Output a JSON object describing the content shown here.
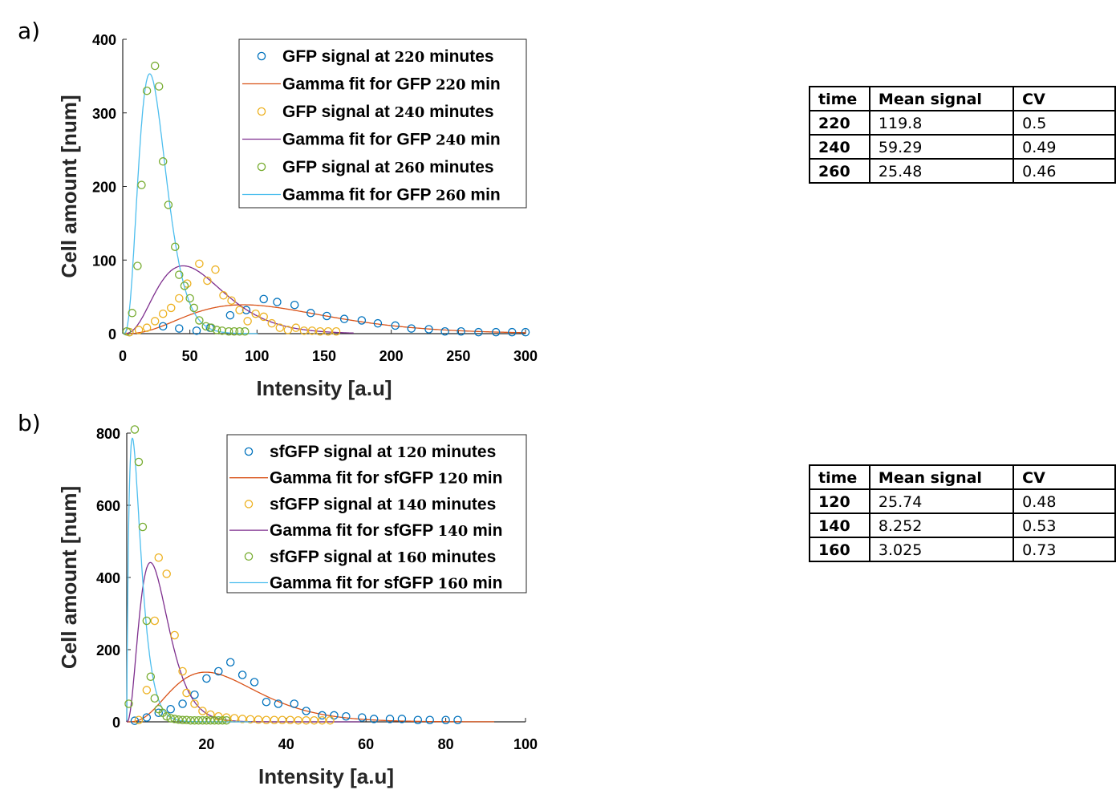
{
  "panels": [
    {
      "label": "a)",
      "chart_data": {
        "type": "scatter",
        "xlabel": "Intensity [a.u]",
        "ylabel": "Cell amount [num]",
        "xlim": [
          0,
          300
        ],
        "ylim": [
          0,
          400
        ],
        "xticks": [
          0,
          50,
          100,
          150,
          200,
          250,
          300
        ],
        "yticks": [
          0,
          100,
          200,
          300,
          400
        ],
        "legend_position": "top-right",
        "series": [
          {
            "name": "GFP signal at 220 minutes",
            "kind": "scatter",
            "color": "#0072BD",
            "x": [
              5,
              30,
              42,
              55,
              65,
              80,
              92,
              105,
              115,
              128,
              140,
              152,
              165,
              178,
              190,
              203,
              215,
              228,
              240,
              252,
              265,
              278,
              290,
              300
            ],
            "y": [
              2,
              10,
              7,
              4,
              8,
              25,
              32,
              47,
              43,
              39,
              28,
              24,
              20,
              18,
              14,
              11,
              7,
              6,
              3,
              3,
              2,
              2,
              2,
              2
            ]
          },
          {
            "name": "Gamma fit for GFP 220 min",
            "kind": "line",
            "color": "#D95319",
            "mean": 119.8,
            "cv": 0.5
          },
          {
            "name": "GFP signal at 240 minutes",
            "kind": "scatter",
            "color": "#EDB120",
            "x": [
              5,
              12,
              18,
              24,
              30,
              36,
              42,
              48,
              57,
              63,
              69,
              75,
              81,
              87,
              93,
              99,
              105,
              111,
              117,
              123,
              129,
              135,
              141,
              147,
              153,
              159
            ],
            "y": [
              2,
              5,
              8,
              17,
              27,
              35,
              48,
              68,
              95,
              72,
              87,
              52,
              45,
              32,
              17,
              27,
              23,
              14,
              8,
              5,
              8,
              4,
              4,
              3,
              3,
              3
            ]
          },
          {
            "name": "Gamma fit for GFP 240 min",
            "kind": "line",
            "color": "#7E2F8E",
            "mean": 59.29,
            "cv": 0.49
          },
          {
            "name": "GFP signal at 260 minutes",
            "kind": "scatter",
            "color": "#77AC30",
            "x": [
              3,
              7,
              11,
              14,
              18,
              24,
              27,
              30,
              34,
              39,
              42,
              46,
              50,
              53,
              57,
              62,
              66,
              70,
              74,
              79,
              83,
              87,
              91
            ],
            "y": [
              3,
              28,
              92,
              202,
              330,
              364,
              336,
              234,
              175,
              118,
              80,
              65,
              48,
              35,
              18,
              10,
              8,
              5,
              4,
              3,
              3,
              3,
              3
            ]
          },
          {
            "name": "Gamma fit for GFP 260 min",
            "kind": "line",
            "color": "#4DBEEE",
            "mean": 25.48,
            "cv": 0.46
          }
        ]
      },
      "table": {
        "headers": [
          "time",
          "Mean signal",
          "CV"
        ],
        "rows": [
          [
            "220",
            "119.8",
            "0.5"
          ],
          [
            "240",
            "59.29",
            "0.49"
          ],
          [
            "260",
            "25.48",
            "0.46"
          ]
        ]
      }
    },
    {
      "label": "b)",
      "chart_data": {
        "type": "scatter",
        "xlabel": "Intensity [a.u]",
        "ylabel": "Cell amount [num]",
        "xlim": [
          0,
          100
        ],
        "ylim": [
          0,
          800
        ],
        "xticks": [
          20,
          40,
          60,
          80,
          100
        ],
        "yticks": [
          0,
          200,
          400,
          600,
          800
        ],
        "legend_position": "top-right",
        "series": [
          {
            "name": "sfGFP signal at 120 minutes",
            "kind": "scatter",
            "color": "#0072BD",
            "x": [
              2,
              5,
              8,
              11,
              14,
              17,
              20,
              23,
              26,
              29,
              32,
              35,
              38,
              42,
              45,
              49,
              52,
              55,
              59,
              62,
              66,
              69,
              73,
              76,
              80,
              83
            ],
            "y": [
              3,
              12,
              25,
              35,
              50,
              75,
              120,
              140,
              165,
              130,
              110,
              55,
              50,
              50,
              30,
              18,
              18,
              15,
              12,
              8,
              8,
              8,
              5,
              5,
              5,
              5
            ]
          },
          {
            "name": "Gamma fit for sfGFP 120 min",
            "kind": "line",
            "color": "#D95319",
            "mean": 25.74,
            "cv": 0.48
          },
          {
            "name": "sfGFP signal at 140 minutes",
            "kind": "scatter",
            "color": "#EDB120",
            "x": [
              3,
              5,
              7,
              8,
              10,
              12,
              14,
              15,
              17,
              19,
              21,
              23,
              25,
              27,
              29,
              31,
              33,
              35,
              37,
              39,
              41,
              43,
              45,
              47,
              49,
              51
            ],
            "y": [
              5,
              88,
              280,
              455,
              410,
              240,
              140,
              80,
              50,
              30,
              20,
              15,
              12,
              10,
              8,
              7,
              6,
              5,
              5,
              5,
              5,
              4,
              4,
              4,
              4,
              4
            ]
          },
          {
            "name": "Gamma fit for sfGFP 140 min",
            "kind": "line",
            "color": "#7E2F8E",
            "mean": 8.252,
            "cv": 0.53
          },
          {
            "name": "sfGFP signal at 160 minutes",
            "kind": "scatter",
            "color": "#77AC30",
            "x": [
              0.5,
              2,
              3,
              4,
              5,
              6,
              7,
              8,
              9,
              10,
              11,
              12,
              13,
              14,
              15,
              16,
              17,
              18,
              19,
              20,
              21,
              22,
              23,
              24,
              25
            ],
            "y": [
              50,
              810,
              720,
              540,
              280,
              125,
              65,
              35,
              25,
              15,
              10,
              8,
              6,
              5,
              5,
              4,
              4,
              4,
              4,
              4,
              4,
              4,
              4,
              4,
              4
            ]
          },
          {
            "name": "Gamma fit for sfGFP 160 min",
            "kind": "line",
            "color": "#4DBEEE",
            "mean": 3.025,
            "cv": 0.73
          }
        ]
      },
      "table": {
        "headers": [
          "time",
          "Mean signal",
          "CV"
        ],
        "rows": [
          [
            "120",
            "25.74",
            "0.48"
          ],
          [
            "140",
            "8.252",
            "0.53"
          ],
          [
            "160",
            "3.025",
            "0.73"
          ]
        ]
      }
    }
  ]
}
